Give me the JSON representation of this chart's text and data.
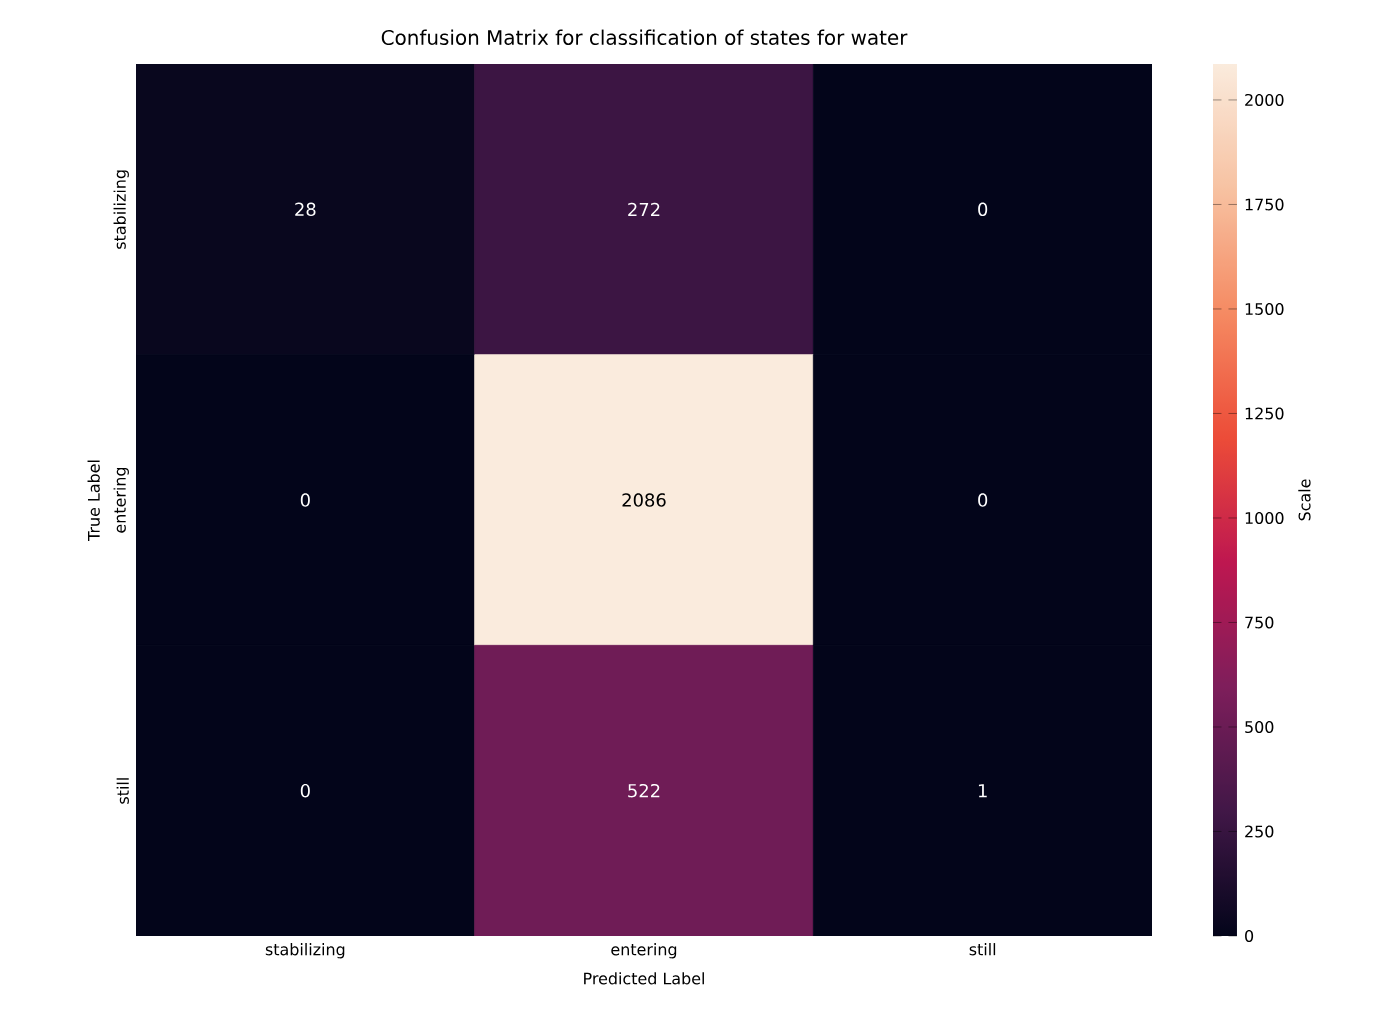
{
  "chart_data": {
    "type": "heatmap",
    "title": "Confusion Matrix for classification of states for water",
    "xlabel": "Predicted Label",
    "ylabel": "True Label",
    "clabel": "Scale",
    "categories": [
      "stabilizing",
      "entering",
      "still"
    ],
    "y_categories": [
      "stabilizing",
      "entering",
      "still"
    ],
    "cells": [
      [
        28,
        272,
        0
      ],
      [
        0,
        2086,
        0
      ],
      [
        0,
        522,
        1
      ]
    ],
    "data_labels": true,
    "clim": [
      0,
      2086
    ],
    "cticks": [
      0,
      250,
      500,
      750,
      1000,
      1250,
      1500,
      1750,
      2000
    ]
  }
}
